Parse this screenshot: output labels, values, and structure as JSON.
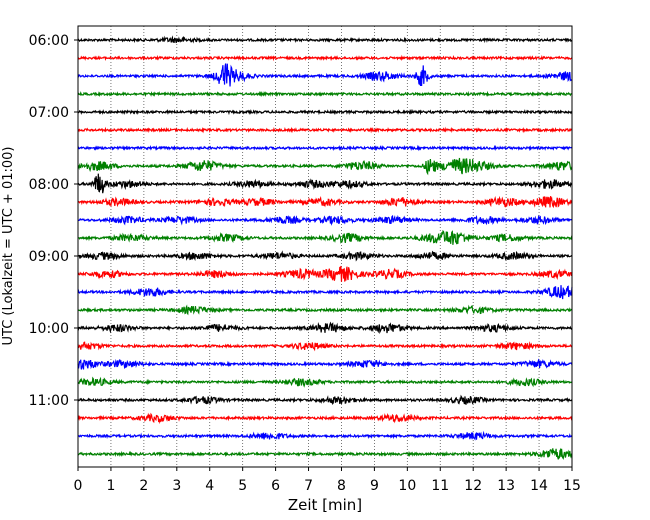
{
  "chart_data": {
    "type": "line",
    "title": "",
    "xlabel": "Zeit  [min]",
    "ylabel": "UTC (Lokalzeit = UTC + 01:00)",
    "xlim": [
      0,
      15
    ],
    "x_ticks": [
      "0",
      "1",
      "2",
      "3",
      "4",
      "5",
      "6",
      "7",
      "8",
      "9",
      "10",
      "11",
      "12",
      "13",
      "14",
      "15"
    ],
    "y_ticks": [
      "06:00",
      "07:00",
      "08:00",
      "09:00",
      "10:00",
      "11:00"
    ],
    "grid": "vertical dotted",
    "trace_minutes": 15,
    "trace_colors": [
      "#000000",
      "#ff0000",
      "#0000ff",
      "#008000"
    ],
    "series": [
      {
        "start": "06:00",
        "color": "#000000",
        "events": [
          [
            3.0,
            2
          ]
        ]
      },
      {
        "start": "06:15",
        "color": "#ff0000",
        "events": []
      },
      {
        "start": "06:30",
        "color": "#0000ff",
        "events": [
          [
            4.45,
            9
          ],
          [
            4.65,
            6
          ],
          [
            9.2,
            4
          ],
          [
            10.45,
            10
          ],
          [
            14.9,
            4
          ]
        ]
      },
      {
        "start": "06:45",
        "color": "#008000",
        "events": []
      },
      {
        "start": "07:00",
        "color": "#000000",
        "events": []
      },
      {
        "start": "07:15",
        "color": "#ff0000",
        "events": []
      },
      {
        "start": "07:30",
        "color": "#0000ff",
        "events": []
      },
      {
        "start": "07:45",
        "color": "#008000",
        "events": [
          [
            0.6,
            4
          ],
          [
            3.8,
            5
          ],
          [
            8.6,
            4
          ],
          [
            10.7,
            8
          ],
          [
            11.5,
            6
          ],
          [
            12.1,
            4
          ],
          [
            14.7,
            4
          ]
        ]
      },
      {
        "start": "08:00",
        "color": "#000000",
        "events": [
          [
            0.65,
            11
          ],
          [
            1.5,
            3
          ],
          [
            5.3,
            3
          ],
          [
            7.1,
            3
          ],
          [
            8.2,
            3
          ],
          [
            14.3,
            4
          ]
        ]
      },
      {
        "start": "08:15",
        "color": "#ff0000",
        "events": [
          [
            1.2,
            3
          ],
          [
            4.2,
            3
          ],
          [
            5.5,
            3
          ],
          [
            7.4,
            3
          ],
          [
            9.8,
            4
          ],
          [
            12.9,
            4
          ],
          [
            14.3,
            5
          ]
        ]
      },
      {
        "start": "08:30",
        "color": "#0000ff",
        "events": [
          [
            1.5,
            3
          ],
          [
            3.1,
            3
          ],
          [
            6.3,
            3
          ],
          [
            7.8,
            3
          ],
          [
            9.5,
            3
          ],
          [
            12.3,
            3
          ],
          [
            14.0,
            3
          ]
        ]
      },
      {
        "start": "08:45",
        "color": "#008000",
        "events": [
          [
            1.6,
            3
          ],
          [
            4.5,
            3
          ],
          [
            8.2,
            4
          ],
          [
            10.8,
            3
          ],
          [
            11.4,
            6
          ],
          [
            13.0,
            3
          ]
        ]
      },
      {
        "start": "09:00",
        "color": "#000000",
        "events": [
          [
            0.8,
            3
          ],
          [
            3.6,
            3
          ],
          [
            6.1,
            3
          ],
          [
            8.5,
            3
          ],
          [
            10.8,
            3
          ],
          [
            13.2,
            3
          ]
        ]
      },
      {
        "start": "09:15",
        "color": "#ff0000",
        "events": [
          [
            0.9,
            3
          ],
          [
            4.2,
            3
          ],
          [
            6.8,
            4
          ],
          [
            8.0,
            7
          ],
          [
            9.5,
            4
          ],
          [
            14.5,
            3
          ]
        ]
      },
      {
        "start": "09:30",
        "color": "#0000ff",
        "events": [
          [
            2.2,
            4
          ],
          [
            14.7,
            6
          ]
        ]
      },
      {
        "start": "09:45",
        "color": "#008000",
        "events": [
          [
            3.5,
            3
          ],
          [
            12.0,
            3
          ]
        ]
      },
      {
        "start": "10:00",
        "color": "#000000",
        "events": [
          [
            1.2,
            3
          ],
          [
            4.3,
            3
          ],
          [
            7.6,
            4
          ],
          [
            9.4,
            4
          ],
          [
            12.6,
            3
          ]
        ]
      },
      {
        "start": "10:15",
        "color": "#ff0000",
        "events": [
          [
            0.2,
            3
          ],
          [
            7.0,
            3
          ],
          [
            13.3,
            3
          ]
        ]
      },
      {
        "start": "10:30",
        "color": "#0000ff",
        "events": [
          [
            0.1,
            5
          ],
          [
            1.4,
            3
          ],
          [
            8.8,
            3
          ],
          [
            14.0,
            3
          ]
        ]
      },
      {
        "start": "10:45",
        "color": "#008000",
        "events": [
          [
            0.5,
            3
          ],
          [
            6.8,
            3
          ],
          [
            13.6,
            3
          ]
        ]
      },
      {
        "start": "11:00",
        "color": "#000000",
        "events": [
          [
            3.8,
            3
          ],
          [
            7.9,
            3
          ],
          [
            11.8,
            3
          ]
        ]
      },
      {
        "start": "11:15",
        "color": "#ff0000",
        "events": [
          [
            2.4,
            3
          ],
          [
            9.7,
            3
          ]
        ]
      },
      {
        "start": "11:30",
        "color": "#0000ff",
        "events": [
          [
            5.8,
            3
          ],
          [
            12.0,
            3
          ]
        ]
      },
      {
        "start": "11:45",
        "color": "#008000",
        "events": [
          [
            14.5,
            5
          ]
        ]
      }
    ]
  }
}
